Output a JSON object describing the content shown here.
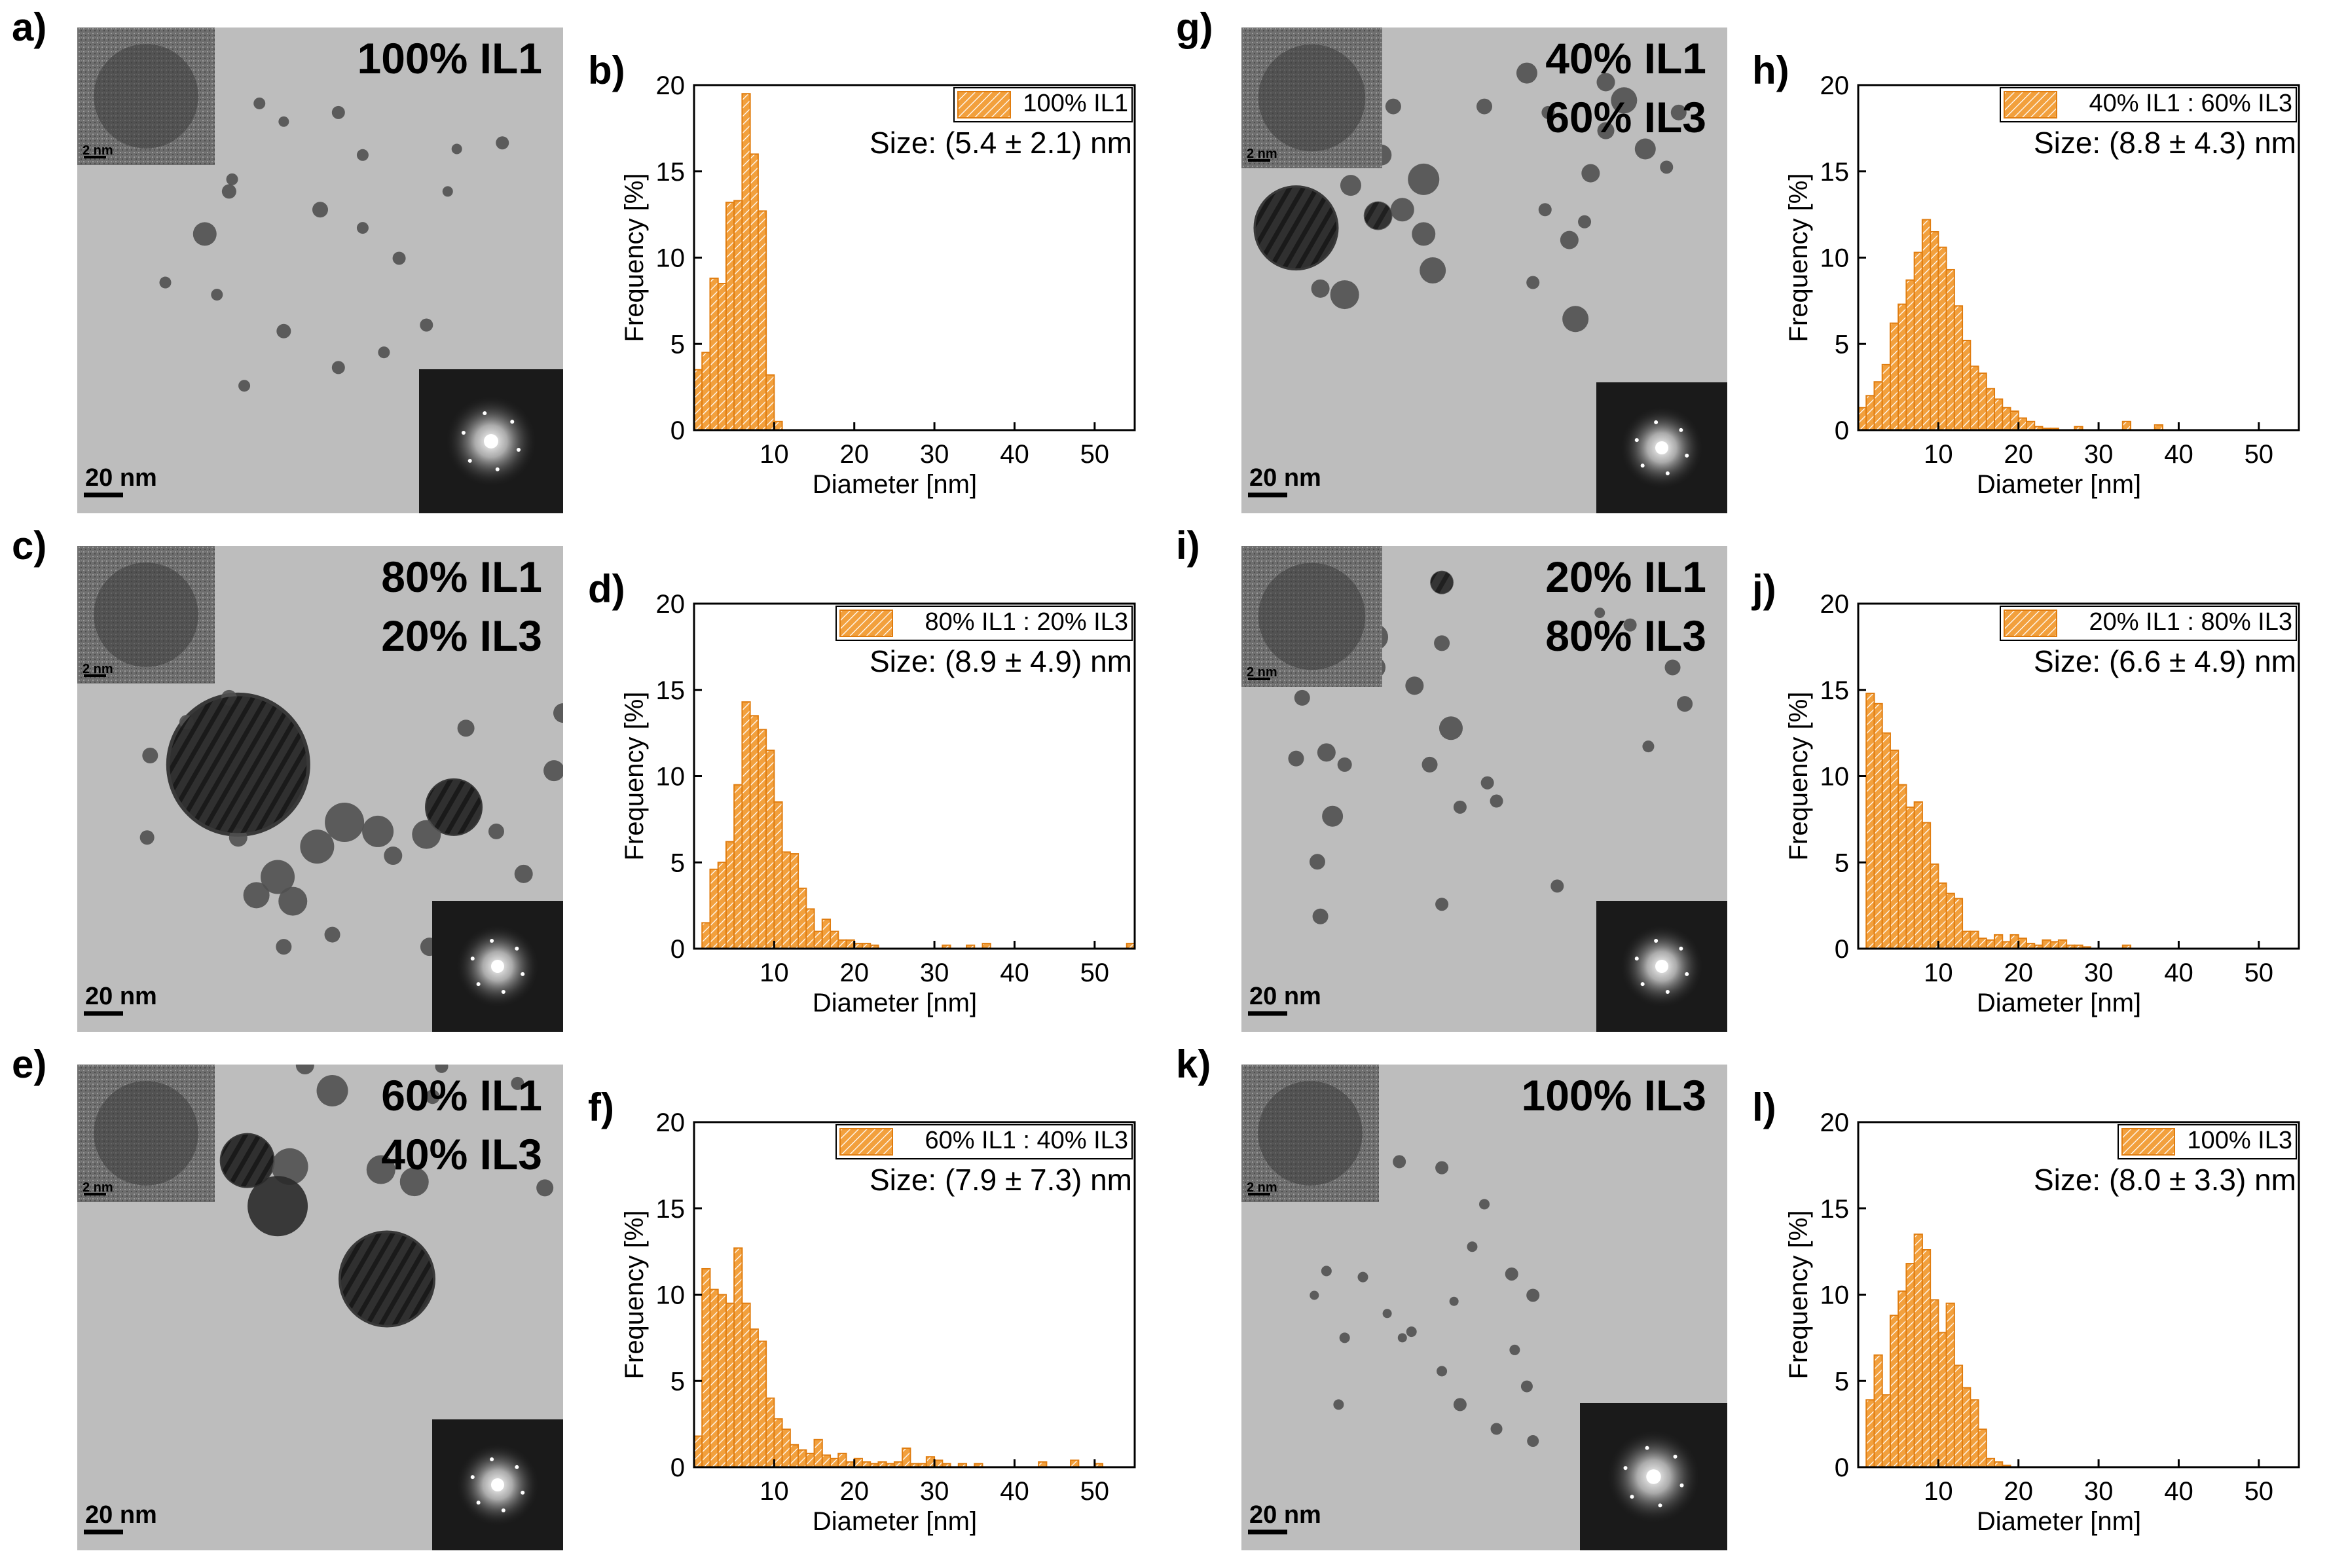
{
  "figure": {
    "x_axis_label": "Diameter [nm]",
    "y_axis_label": "Frequency [%]",
    "scale_bar_label": "20 nm",
    "inset_scale_label": "2 nm",
    "colors": {
      "bar_fill": "#f2a03d",
      "bar_stroke": "#e07d10",
      "bar_hatch": "#ffffff",
      "tem_background": "#bdbdbd",
      "fft_background": "#1a1a1a"
    }
  },
  "panels": [
    {
      "tem_label": "a)",
      "composition": [
        "100% IL1"
      ],
      "hist_label": "b)"
    },
    {
      "tem_label": "c)",
      "composition": [
        "80% IL1",
        "20% IL3"
      ],
      "hist_label": "d)"
    },
    {
      "tem_label": "e)",
      "composition": [
        "60% IL1",
        "40% IL3"
      ],
      "hist_label": "f)"
    },
    {
      "tem_label": "g)",
      "composition": [
        "40% IL1",
        "60% IL3"
      ],
      "hist_label": "h)"
    },
    {
      "tem_label": "i)",
      "composition": [
        "20% IL1",
        "80% IL3"
      ],
      "hist_label": "j)"
    },
    {
      "tem_label": "k)",
      "composition": [
        "100% IL3"
      ],
      "hist_label": "l)"
    }
  ],
  "chart_data": [
    {
      "type": "bar",
      "panel": "b)",
      "legend": "100% IL1",
      "size_text": "Size: (5.4 ± 2.1) nm",
      "xlabel": "Diameter [nm]",
      "ylabel": "Frequency [%]",
      "xlim": [
        0,
        55
      ],
      "ylim": [
        0,
        20
      ],
      "xticks": [
        10,
        20,
        30,
        40,
        50
      ],
      "yticks": [
        0,
        5,
        10,
        15,
        20
      ],
      "bin_width": 1,
      "bin_start": 0,
      "values": [
        3.5,
        4.5,
        8.8,
        8.5,
        13.2,
        13.3,
        19.5,
        16.0,
        12.7,
        3.2,
        0.5
      ]
    },
    {
      "type": "bar",
      "panel": "d)",
      "legend": "80% IL1 : 20% IL3",
      "size_text": "Size: (8.9 ± 4.9) nm",
      "xlabel": "Diameter [nm]",
      "ylabel": "Frequency [%]",
      "xlim": [
        0,
        55
      ],
      "ylim": [
        0,
        20
      ],
      "xticks": [
        10,
        20,
        30,
        40,
        50
      ],
      "yticks": [
        0,
        5,
        10,
        15,
        20
      ],
      "bin_width": 1,
      "bin_start": 1,
      "values": [
        1.5,
        4.6,
        5.0,
        6.2,
        9.5,
        14.3,
        13.5,
        12.7,
        11.5,
        8.5,
        5.6,
        5.5,
        3.5,
        2.3,
        1.0,
        1.7,
        1.0,
        0.5,
        0.5,
        0.3,
        0.3,
        0.2,
        0,
        0,
        0,
        0,
        0,
        0,
        0,
        0,
        0.2,
        0,
        0,
        0.2,
        0,
        0.3,
        0,
        0,
        0,
        0,
        0,
        0,
        0,
        0,
        0,
        0,
        0,
        0,
        0,
        0,
        0,
        0,
        0,
        0.3
      ]
    },
    {
      "type": "bar",
      "panel": "f)",
      "legend": "60% IL1 : 40% IL3",
      "size_text": "Size: (7.9 ± 7.3) nm",
      "xlabel": "Diameter [nm]",
      "ylabel": "Frequency [%]",
      "xlim": [
        0,
        55
      ],
      "ylim": [
        0,
        20
      ],
      "xticks": [
        10,
        20,
        30,
        40,
        50
      ],
      "yticks": [
        0,
        5,
        10,
        15,
        20
      ],
      "bin_width": 1,
      "bin_start": 0,
      "values": [
        1.8,
        11.5,
        10.3,
        10.0,
        9.5,
        12.7,
        9.5,
        8.0,
        7.3,
        4.0,
        2.8,
        2.2,
        1.3,
        1.0,
        0.8,
        1.6,
        0.7,
        0.5,
        0.8,
        0.3,
        0.5,
        0.3,
        0.2,
        0.3,
        0.2,
        0.3,
        1.1,
        0.2,
        0.2,
        0.6,
        0.4,
        0.2,
        0,
        0.2,
        0,
        0.2,
        0,
        0,
        0,
        0,
        0,
        0,
        0,
        0.3,
        0,
        0,
        0,
        0.4,
        0,
        0,
        0.2
      ]
    },
    {
      "type": "bar",
      "panel": "h)",
      "legend": "40% IL1 : 60% IL3",
      "size_text": "Size: (8.8 ± 4.3) nm",
      "xlabel": "Diameter [nm]",
      "ylabel": "Frequency [%]",
      "xlim": [
        0,
        55
      ],
      "ylim": [
        0,
        20
      ],
      "xticks": [
        10,
        20,
        30,
        40,
        50
      ],
      "yticks": [
        0,
        5,
        10,
        15,
        20
      ],
      "bin_width": 1,
      "bin_start": 0,
      "values": [
        1.3,
        2.0,
        2.8,
        3.8,
        6.2,
        7.3,
        8.7,
        10.3,
        12.2,
        11.5,
        10.6,
        9.3,
        7.2,
        5.2,
        3.7,
        3.3,
        2.4,
        1.8,
        1.3,
        1.1,
        0.7,
        0.5,
        0.2,
        0.1,
        0.1,
        0,
        0,
        0.2,
        0,
        0,
        0,
        0,
        0,
        0.5,
        0,
        0,
        0,
        0.3
      ]
    },
    {
      "type": "bar",
      "panel": "j)",
      "legend": "20% IL1 : 80% IL3",
      "size_text": "Size: (6.6 ± 4.9) nm",
      "xlabel": "Diameter [nm]",
      "ylabel": "Frequency [%]",
      "xlim": [
        0,
        55
      ],
      "ylim": [
        0,
        20
      ],
      "xticks": [
        10,
        20,
        30,
        40,
        50
      ],
      "yticks": [
        0,
        5,
        10,
        15,
        20
      ],
      "bin_width": 1,
      "bin_start": 1,
      "values": [
        14.8,
        14.2,
        12.5,
        11.5,
        9.5,
        8.2,
        8.5,
        7.3,
        4.9,
        3.8,
        3.2,
        2.9,
        1.0,
        1.0,
        0.6,
        0.5,
        0.8,
        0.4,
        0.8,
        0.6,
        0.3,
        0.2,
        0.5,
        0.4,
        0.5,
        0.2,
        0.2,
        0.1,
        0,
        0,
        0,
        0,
        0.2
      ]
    },
    {
      "type": "bar",
      "panel": "l)",
      "legend": "100% IL3",
      "size_text": "Size: (8.0 ± 3.3) nm",
      "xlabel": "Diameter [nm]",
      "ylabel": "Frequency [%]",
      "xlim": [
        0,
        55
      ],
      "ylim": [
        0,
        20
      ],
      "xticks": [
        10,
        20,
        30,
        40,
        50
      ],
      "yticks": [
        0,
        5,
        10,
        15,
        20
      ],
      "bin_width": 1,
      "bin_start": 1,
      "values": [
        3.9,
        6.5,
        4.2,
        8.8,
        10.2,
        11.8,
        13.5,
        12.6,
        9.7,
        7.8,
        9.5,
        5.9,
        4.6,
        3.9,
        2.2,
        0.5,
        0.3,
        0.1
      ]
    }
  ]
}
